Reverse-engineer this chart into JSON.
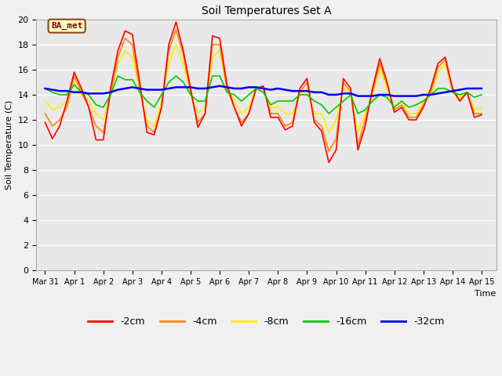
{
  "title": "Soil Temperatures Set A",
  "xlabel": "Time",
  "ylabel": "Soil Temperature (C)",
  "ylim": [
    0,
    20
  ],
  "xlim": [
    -0.3,
    15.5
  ],
  "annotation_text": "BA_met",
  "fig_facecolor": "#f0f0f0",
  "plot_facecolor": "#e8e8e8",
  "grid_color": "#ffffff",
  "series_colors": {
    "-2cm": "#ff0000",
    "-4cm": "#ff8800",
    "-8cm": "#ffee00",
    "-16cm": "#00cc00",
    "-32cm": "#0000ee"
  },
  "xtick_labels": [
    "Mar 31",
    "Apr 1",
    "Apr 2",
    "Apr 3",
    "Apr 4",
    "Apr 5",
    "Apr 6",
    "Apr 7",
    "Apr 8",
    "Apr 9",
    "Apr 10",
    "Apr 11",
    "Apr 12",
    "Apr 13",
    "Apr 14",
    "Apr 15"
  ],
  "xtick_positions": [
    0,
    1,
    2,
    3,
    4,
    5,
    6,
    7,
    8,
    9,
    10,
    11,
    12,
    13,
    14,
    15
  ],
  "data": {
    "time": [
      0,
      0.25,
      0.5,
      0.75,
      1.0,
      1.25,
      1.5,
      1.75,
      2.0,
      2.25,
      2.5,
      2.75,
      3.0,
      3.25,
      3.5,
      3.75,
      4.0,
      4.25,
      4.5,
      4.75,
      5.0,
      5.25,
      5.5,
      5.75,
      6.0,
      6.25,
      6.5,
      6.75,
      7.0,
      7.25,
      7.5,
      7.75,
      8.0,
      8.25,
      8.5,
      8.75,
      9.0,
      9.25,
      9.5,
      9.75,
      10.0,
      10.25,
      10.5,
      10.75,
      11.0,
      11.25,
      11.5,
      11.75,
      12.0,
      12.25,
      12.5,
      12.75,
      13.0,
      13.25,
      13.5,
      13.75,
      14.0,
      14.25,
      14.5,
      14.75,
      15.0
    ],
    "m2cm": [
      11.8,
      10.5,
      11.5,
      13.5,
      15.8,
      14.5,
      13.0,
      10.4,
      10.4,
      14.5,
      17.5,
      19.1,
      18.8,
      15.0,
      11.0,
      10.8,
      13.0,
      18.0,
      19.8,
      17.5,
      14.5,
      11.4,
      12.5,
      18.7,
      18.5,
      14.8,
      13.0,
      11.5,
      12.5,
      14.5,
      14.7,
      12.2,
      12.2,
      11.2,
      11.5,
      14.5,
      15.3,
      11.8,
      11.1,
      8.6,
      9.6,
      15.3,
      14.5,
      9.6,
      11.5,
      14.5,
      16.9,
      15.0,
      12.6,
      13.0,
      12.0,
      12.0,
      13.0,
      14.5,
      16.5,
      17.0,
      14.5,
      13.5,
      14.2,
      12.2,
      12.4
    ],
    "m4cm": [
      12.5,
      11.5,
      12.0,
      13.0,
      15.5,
      14.2,
      13.0,
      11.5,
      11.0,
      14.0,
      17.0,
      18.5,
      18.0,
      14.5,
      11.5,
      11.0,
      13.0,
      17.5,
      19.2,
      17.2,
      14.2,
      11.8,
      12.5,
      18.0,
      18.0,
      14.5,
      13.0,
      11.8,
      12.5,
      14.5,
      14.5,
      12.5,
      12.5,
      11.5,
      11.8,
      14.2,
      15.0,
      12.0,
      11.5,
      9.5,
      10.5,
      15.0,
      14.2,
      10.0,
      12.0,
      14.2,
      16.5,
      14.8,
      12.8,
      13.2,
      12.2,
      12.2,
      13.2,
      14.2,
      16.2,
      16.8,
      14.3,
      13.5,
      14.2,
      12.5,
      12.5
    ],
    "m8cm": [
      13.5,
      12.8,
      13.0,
      13.5,
      15.0,
      14.0,
      13.5,
      12.5,
      12.0,
      14.0,
      16.5,
      17.5,
      17.0,
      14.5,
      12.0,
      11.5,
      13.5,
      16.5,
      18.0,
      16.5,
      14.0,
      12.5,
      13.0,
      17.0,
      17.5,
      14.5,
      13.5,
      12.5,
      13.0,
      14.5,
      14.5,
      13.0,
      13.0,
      12.5,
      12.5,
      14.0,
      14.5,
      12.5,
      12.5,
      11.0,
      12.0,
      14.5,
      14.0,
      11.0,
      12.5,
      14.0,
      16.0,
      14.5,
      13.0,
      13.5,
      12.5,
      12.5,
      13.5,
      14.0,
      15.8,
      16.5,
      14.2,
      13.8,
      14.2,
      12.8,
      13.0
    ],
    "m16cm": [
      14.5,
      14.2,
      14.0,
      14.0,
      14.8,
      14.2,
      14.0,
      13.2,
      13.0,
      14.0,
      15.5,
      15.2,
      15.2,
      14.2,
      13.5,
      13.0,
      14.0,
      15.0,
      15.5,
      15.0,
      14.0,
      13.5,
      13.5,
      15.5,
      15.5,
      14.2,
      14.0,
      13.5,
      14.0,
      14.5,
      14.2,
      13.2,
      13.5,
      13.5,
      13.5,
      14.0,
      14.0,
      13.5,
      13.2,
      12.5,
      13.0,
      13.5,
      14.0,
      12.5,
      12.8,
      13.5,
      14.0,
      13.8,
      13.0,
      13.5,
      13.0,
      13.2,
      13.5,
      14.0,
      14.5,
      14.5,
      14.2,
      14.0,
      14.2,
      13.8,
      14.0
    ],
    "m32cm": [
      14.5,
      14.4,
      14.3,
      14.3,
      14.2,
      14.2,
      14.1,
      14.1,
      14.1,
      14.2,
      14.4,
      14.5,
      14.6,
      14.5,
      14.4,
      14.4,
      14.4,
      14.5,
      14.6,
      14.6,
      14.6,
      14.5,
      14.5,
      14.6,
      14.7,
      14.6,
      14.5,
      14.5,
      14.6,
      14.6,
      14.5,
      14.4,
      14.5,
      14.4,
      14.3,
      14.3,
      14.3,
      14.2,
      14.2,
      14.0,
      14.0,
      14.1,
      14.1,
      13.9,
      13.9,
      13.9,
      14.0,
      14.0,
      13.9,
      13.9,
      13.9,
      13.9,
      14.0,
      14.0,
      14.1,
      14.2,
      14.3,
      14.4,
      14.5,
      14.5,
      14.5
    ]
  }
}
